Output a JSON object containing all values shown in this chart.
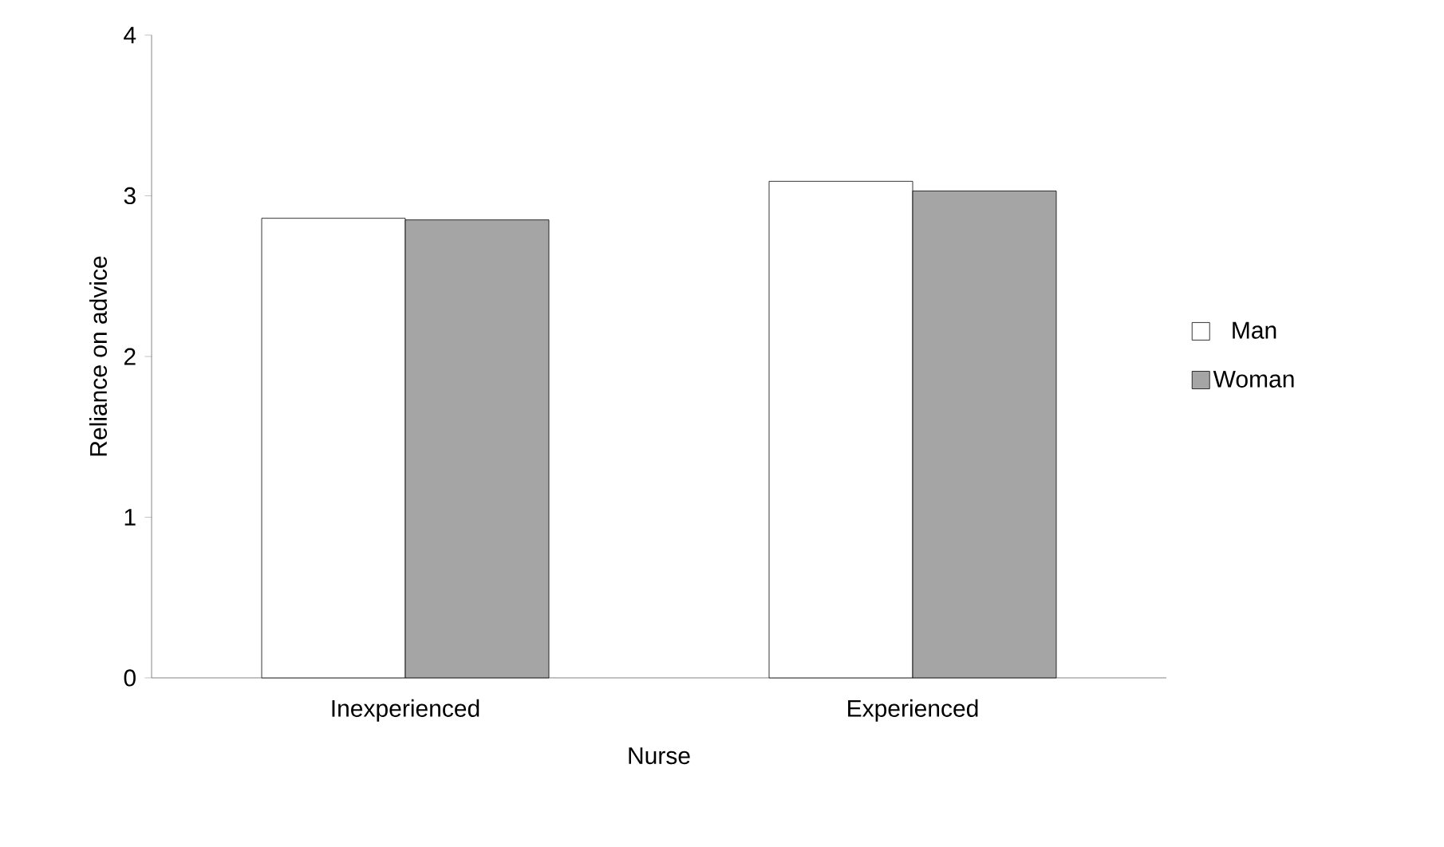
{
  "chart_data": {
    "type": "bar",
    "xlabel": "Nurse",
    "ylabel": "Reliance on advice",
    "categories": [
      "Inexperienced",
      "Experienced"
    ],
    "series": [
      {
        "name": "Man",
        "color": "#ffffff",
        "values": [
          2.86,
          3.09
        ]
      },
      {
        "name": "Woman",
        "color": "#a5a5a5",
        "values": [
          2.85,
          3.03
        ]
      }
    ],
    "ylim": [
      0,
      4
    ],
    "yticks": [
      0,
      1,
      2,
      3,
      4
    ],
    "grid": false,
    "legend": "right"
  }
}
